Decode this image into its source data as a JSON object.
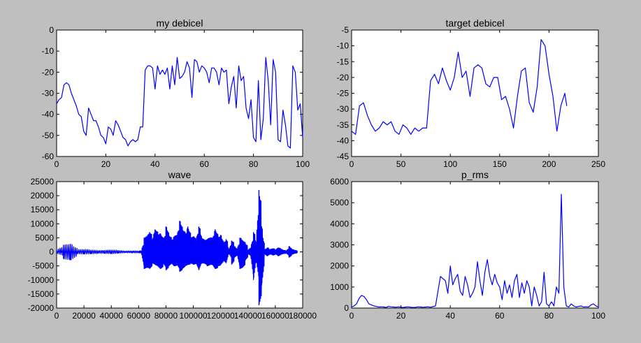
{
  "colors": {
    "background": "#bfbfbf",
    "axes": "#ffffff",
    "line": "#0000ff"
  },
  "chart_data": [
    {
      "type": "line",
      "title": "my debicel",
      "xlim": [
        0,
        100
      ],
      "ylim": [
        -60,
        0
      ],
      "xticks": [
        0,
        20,
        40,
        60,
        80,
        100
      ],
      "yticks": [
        0,
        -10,
        -20,
        -30,
        -40,
        -50,
        -60
      ],
      "grid": false,
      "x": [
        0,
        1,
        2,
        3,
        4,
        5,
        6,
        7,
        8,
        9,
        10,
        11,
        12,
        13,
        14,
        15,
        16,
        17,
        18,
        19,
        20,
        21,
        22,
        23,
        24,
        25,
        26,
        27,
        28,
        29,
        30,
        31,
        32,
        33,
        34,
        35,
        36,
        37,
        38,
        39,
        40,
        41,
        42,
        43,
        44,
        45,
        46,
        47,
        48,
        49,
        50,
        51,
        52,
        53,
        54,
        55,
        56,
        57,
        58,
        59,
        60,
        61,
        62,
        63,
        64,
        65,
        66,
        67,
        68,
        69,
        70,
        71,
        72,
        73,
        74,
        75,
        76,
        77,
        78,
        79,
        80,
        81,
        82,
        83,
        84,
        85,
        86,
        87,
        88,
        89,
        90,
        91,
        92,
        93,
        94,
        95,
        96,
        97,
        98,
        99,
        100
      ],
      "y": [
        -35,
        -33,
        -32,
        -26,
        -25,
        -26,
        -30,
        -33,
        -36,
        -40,
        -41,
        -48,
        -50,
        -37,
        -40,
        -43,
        -43,
        -46,
        -50,
        -51,
        -54,
        -46,
        -47,
        -50,
        -43,
        -45,
        -48,
        -51,
        -52,
        -55,
        -53,
        -52,
        -53,
        -52,
        -46,
        -46,
        -19,
        -17,
        -17,
        -18,
        -28,
        -17,
        -21,
        -19,
        -21,
        -18,
        -28,
        -17,
        -26,
        -13,
        -23,
        -22,
        -20,
        -15,
        -18,
        -32,
        -14,
        -15,
        -20,
        -17,
        -18,
        -20,
        -25,
        -18,
        -18,
        -20,
        -26,
        -18,
        -20,
        -19,
        -35,
        -27,
        -22,
        -37,
        -17,
        -24,
        -22,
        -37,
        -42,
        -33,
        -51,
        -53,
        -24,
        -52,
        -42,
        -13,
        -24,
        -45,
        -14,
        -20,
        -52,
        -53,
        -38,
        -45,
        -55,
        -56,
        -17,
        -20,
        -38,
        -35,
        -51
      ],
      "series": [
        {
          "color": "#0000ff"
        }
      ]
    },
    {
      "type": "line",
      "title": "target debicel",
      "xlim": [
        0,
        250
      ],
      "ylim": [
        -45,
        -5
      ],
      "xticks": [
        0,
        50,
        100,
        150,
        200,
        250
      ],
      "yticks": [
        -5,
        -10,
        -15,
        -20,
        -25,
        -30,
        -35,
        -40,
        -45
      ],
      "grid": false,
      "x": [
        0,
        4,
        8,
        12,
        16,
        20,
        24,
        28,
        32,
        36,
        40,
        44,
        48,
        52,
        56,
        60,
        64,
        68,
        72,
        76,
        80,
        84,
        88,
        92,
        96,
        100,
        104,
        108,
        112,
        116,
        120,
        124,
        128,
        132,
        136,
        140,
        144,
        148,
        152,
        156,
        160,
        164,
        168,
        172,
        176,
        180,
        184,
        188,
        192,
        196,
        200,
        204,
        208,
        212,
        216,
        218
      ],
      "y": [
        -37,
        -38,
        -29,
        -28,
        -32,
        -35,
        -37,
        -36,
        -34,
        -35,
        -34,
        -37,
        -38,
        -35,
        -36,
        -38,
        -36,
        -37,
        -36,
        -36,
        -21,
        -19,
        -22,
        -17,
        -21,
        -24,
        -20,
        -12,
        -20,
        -18,
        -26,
        -17,
        -16,
        -17,
        -22,
        -23,
        -20,
        -20,
        -27,
        -26,
        -30,
        -36,
        -26,
        -18,
        -17,
        -28,
        -31,
        -23,
        -8,
        -10,
        -19,
        -26,
        -37,
        -29,
        -25,
        -29
      ],
      "series": [
        {
          "color": "#0000ff"
        }
      ]
    },
    {
      "type": "line",
      "title": "wave",
      "xlim": [
        0,
        180000
      ],
      "ylim": [
        -20000,
        25000
      ],
      "xticks": [
        0,
        20000,
        40000,
        60000,
        80000,
        100000,
        120000,
        140000,
        160000,
        180000
      ],
      "yticks": [
        25000,
        20000,
        15000,
        10000,
        5000,
        0,
        -5000,
        -10000,
        -15000,
        -20000
      ],
      "grid": false,
      "envelope": {
        "x": [
          0,
          5000,
          10000,
          15000,
          20000,
          25000,
          30000,
          35000,
          40000,
          45000,
          50000,
          55000,
          60000,
          62000,
          64000,
          66000,
          68000,
          70000,
          72000,
          74000,
          76000,
          78000,
          80000,
          82000,
          84000,
          86000,
          88000,
          90000,
          92000,
          94000,
          96000,
          98000,
          100000,
          102000,
          104000,
          106000,
          108000,
          110000,
          112000,
          114000,
          116000,
          118000,
          120000,
          122000,
          124000,
          126000,
          128000,
          130000,
          132000,
          134000,
          136000,
          138000,
          140000,
          142000,
          144000,
          146000,
          148000,
          150000,
          152000,
          154000,
          156000,
          158000,
          160000,
          162000,
          164000,
          166000,
          168000,
          170000,
          172000,
          174000,
          176000
        ],
        "y_max": [
          500,
          2500,
          2800,
          800,
          900,
          700,
          500,
          600,
          700,
          500,
          300,
          400,
          300,
          400,
          5000,
          5500,
          7000,
          4500,
          8000,
          6000,
          6500,
          4000,
          9000,
          6000,
          4000,
          5500,
          6000,
          11000,
          8000,
          6000,
          9000,
          5000,
          5500,
          4500,
          9000,
          5000,
          4000,
          4500,
          5000,
          5000,
          8000,
          5000,
          6000,
          3000,
          4500,
          500,
          4000,
          2000,
          800,
          5000,
          4000,
          3000,
          700,
          1500,
          7000,
          3000,
          22000,
          9000,
          700,
          1500,
          800,
          1200,
          700,
          1500,
          900,
          600,
          400,
          2000,
          900,
          500,
          400
        ],
        "y_min": [
          -500,
          -2500,
          -3000,
          -700,
          -800,
          -700,
          -500,
          -600,
          -700,
          -500,
          -300,
          -400,
          -300,
          -400,
          -6000,
          -5500,
          -6000,
          -4000,
          -4500,
          -5000,
          -6000,
          -4000,
          -6500,
          -5000,
          -4000,
          -5000,
          -4500,
          -7000,
          -6000,
          -5000,
          -4500,
          -4000,
          -4500,
          -4000,
          -6500,
          -4000,
          -4000,
          -5000,
          -4500,
          -4500,
          -6000,
          -5000,
          -4500,
          -3000,
          -4000,
          -500,
          -4500,
          -2000,
          -800,
          -6000,
          -5500,
          -3000,
          -700,
          -1500,
          -10000,
          -3000,
          -19000,
          -12000,
          -700,
          -1500,
          -800,
          -1200,
          -700,
          -1500,
          -900,
          -600,
          -400,
          -2000,
          -900,
          -500,
          -400
        ]
      },
      "series": [
        {
          "color": "#0000ff"
        }
      ]
    },
    {
      "type": "line",
      "title": "p_rms",
      "xlim": [
        0,
        100
      ],
      "ylim": [
        0,
        6000
      ],
      "xticks": [
        0,
        20,
        40,
        60,
        80,
        100
      ],
      "yticks": [
        6000,
        5000,
        4000,
        3000,
        2000,
        1000,
        0
      ],
      "grid": false,
      "x": [
        0,
        1,
        2,
        3,
        4,
        5,
        6,
        7,
        8,
        9,
        10,
        11,
        12,
        13,
        14,
        15,
        16,
        17,
        18,
        19,
        20,
        21,
        22,
        23,
        24,
        25,
        26,
        27,
        28,
        29,
        30,
        31,
        32,
        33,
        34,
        35,
        36,
        37,
        38,
        39,
        40,
        41,
        42,
        43,
        44,
        45,
        46,
        47,
        48,
        49,
        50,
        51,
        52,
        53,
        54,
        55,
        56,
        57,
        58,
        59,
        60,
        61,
        62,
        63,
        64,
        65,
        66,
        67,
        68,
        69,
        70,
        71,
        72,
        73,
        74,
        75,
        76,
        77,
        78,
        79,
        80,
        81,
        82,
        83,
        84,
        85,
        86,
        87,
        88,
        89,
        90,
        91,
        92,
        93,
        94,
        95,
        96,
        97,
        98,
        99,
        100
      ],
      "y": [
        50,
        100,
        200,
        450,
        600,
        550,
        400,
        200,
        150,
        100,
        80,
        50,
        60,
        50,
        30,
        80,
        60,
        50,
        40,
        60,
        40,
        30,
        50,
        60,
        40,
        30,
        40,
        60,
        50,
        40,
        50,
        60,
        40,
        70,
        100,
        800,
        1500,
        1400,
        1300,
        700,
        2000,
        1100,
        1400,
        1600,
        800,
        600,
        1500,
        1100,
        500,
        700,
        1000,
        2200,
        1300,
        600,
        1700,
        2300,
        1500,
        1100,
        1600,
        1200,
        1000,
        400,
        1300,
        700,
        1100,
        500,
        1300,
        1600,
        500,
        1200,
        700,
        1300,
        1000,
        100,
        1000,
        600,
        100,
        300,
        1700,
        200,
        100,
        300,
        100,
        1000,
        700,
        5400,
        1000,
        100,
        50,
        200,
        100,
        50,
        80,
        100,
        50,
        60,
        50,
        150,
        200,
        100,
        50
      ],
      "series": [
        {
          "color": "#0000ff"
        }
      ]
    }
  ]
}
